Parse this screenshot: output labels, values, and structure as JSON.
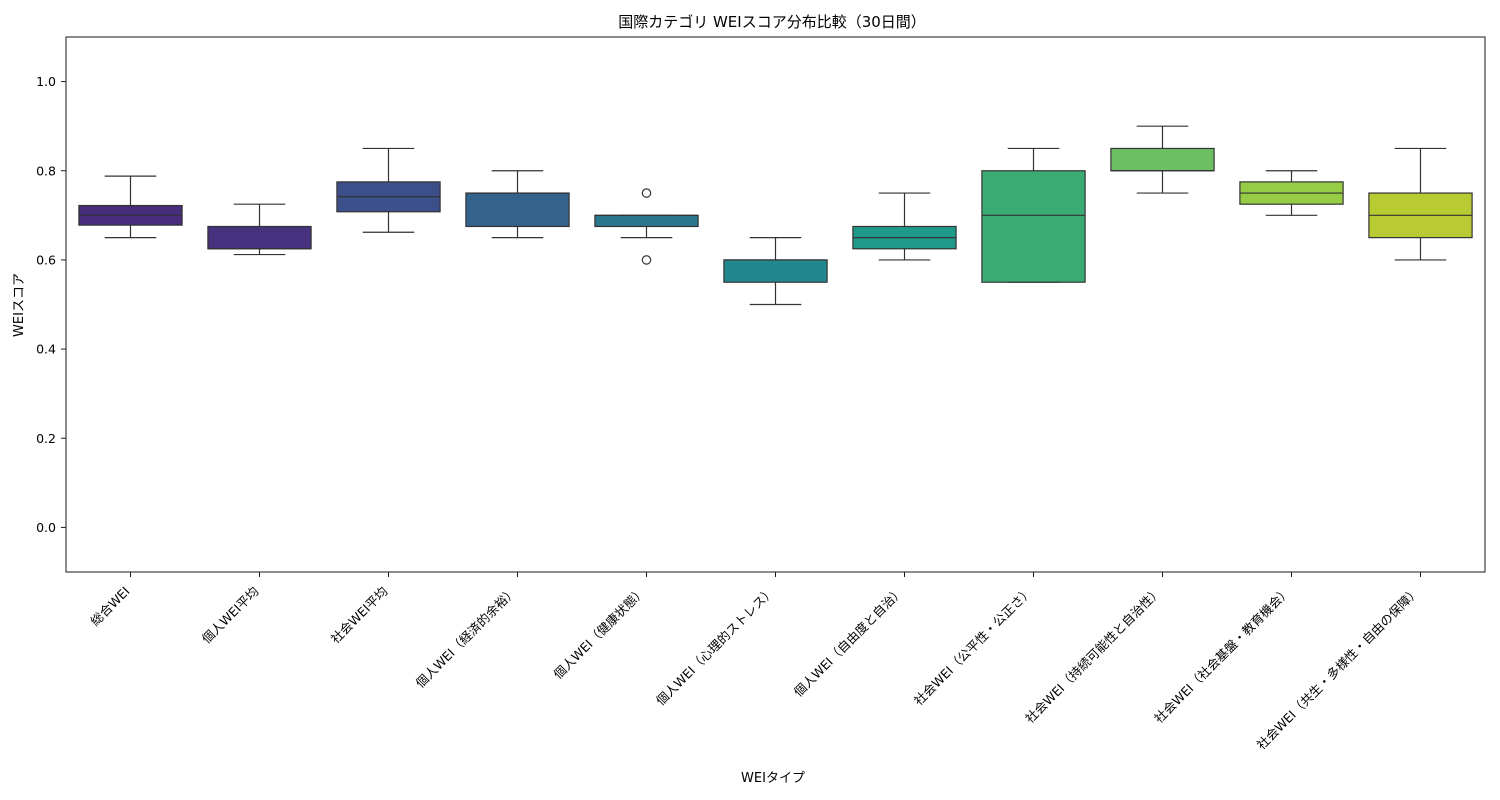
{
  "chart_data": {
    "type": "boxplot",
    "title": "国際カテゴリ WEIスコア分布比較（30日間）",
    "xlabel": "WEIタイプ",
    "ylabel": "WEIスコア",
    "ylim": [
      -0.1,
      1.1
    ],
    "yticks": [
      "0.0",
      "0.2",
      "0.4",
      "0.6",
      "0.8",
      "1.0"
    ],
    "ytick_values": [
      0.0,
      0.2,
      0.4,
      0.6,
      0.8,
      1.0
    ],
    "grid": false,
    "boxes": [
      {
        "category": "総合WEI",
        "whisker_low": 0.65,
        "q1": 0.678,
        "median": 0.7,
        "q3": 0.722,
        "whisker_high": 0.788,
        "outliers": [],
        "color": "#472d7b"
      },
      {
        "category": "個人WEI平均",
        "whisker_low": 0.612,
        "q1": 0.625,
        "median": 0.625,
        "q3": 0.675,
        "whisker_high": 0.725,
        "outliers": [],
        "color": "#46327e"
      },
      {
        "category": "社会WEI平均",
        "whisker_low": 0.662,
        "q1": 0.708,
        "median": 0.742,
        "q3": 0.775,
        "whisker_high": 0.85,
        "outliers": [],
        "color": "#3b4f8a"
      },
      {
        "category": "個人WEI（経済的余裕）",
        "whisker_low": 0.65,
        "q1": 0.675,
        "median": 0.75,
        "q3": 0.75,
        "whisker_high": 0.8,
        "outliers": [],
        "color": "#33638d"
      },
      {
        "category": "個人WEI（健康状態）",
        "whisker_low": 0.65,
        "q1": 0.675,
        "median": 0.7,
        "q3": 0.7,
        "whisker_high": 0.7,
        "outliers": [
          0.75,
          0.6
        ],
        "color": "#2b758e"
      },
      {
        "category": "個人WEI（心理的ストレス）",
        "whisker_low": 0.5,
        "q1": 0.55,
        "median": 0.6,
        "q3": 0.6,
        "whisker_high": 0.65,
        "outliers": [],
        "color": "#23888e"
      },
      {
        "category": "個人WEI（自由度と自治）",
        "whisker_low": 0.6,
        "q1": 0.625,
        "median": 0.65,
        "q3": 0.675,
        "whisker_high": 0.75,
        "outliers": [],
        "color": "#1f9a8a"
      },
      {
        "category": "社会WEI（公平性・公正さ）",
        "whisker_low": 0.55,
        "q1": 0.55,
        "median": 0.7,
        "q3": 0.8,
        "whisker_high": 0.85,
        "outliers": [],
        "color": "#3aab73"
      },
      {
        "category": "社会WEI（持続可能性と自治性）",
        "whisker_low": 0.75,
        "q1": 0.8,
        "median": 0.8,
        "q3": 0.85,
        "whisker_high": 0.9,
        "outliers": [],
        "color": "#6cbf63"
      },
      {
        "category": "社会WEI（社会基盤・教育機会）",
        "whisker_low": 0.7,
        "q1": 0.725,
        "median": 0.75,
        "q3": 0.775,
        "whisker_high": 0.8,
        "outliers": [],
        "color": "#97cd45"
      },
      {
        "category": "社会WEI（共生・多様性・自由の保障）",
        "whisker_low": 0.6,
        "q1": 0.65,
        "median": 0.7,
        "q3": 0.75,
        "whisker_high": 0.85,
        "outliers": [],
        "color": "#b8cb33"
      }
    ]
  }
}
